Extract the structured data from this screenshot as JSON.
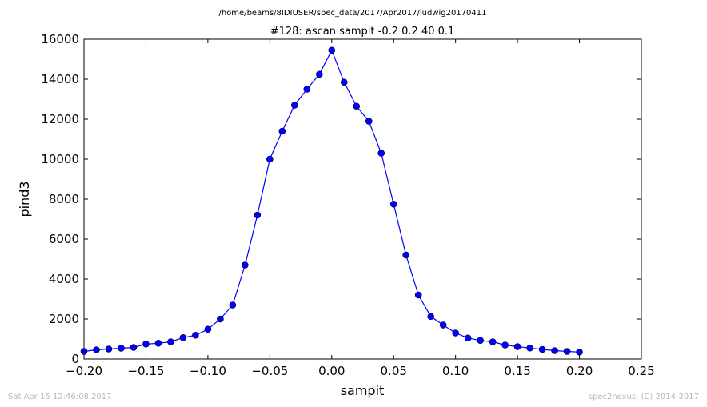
{
  "suptitle": "/home/beams/8IDIUSER/spec_data/2017/Apr2017/ludwig20170411",
  "footer": {
    "timestamp": "Sat Apr 15 12:46:08 2017",
    "credit": "spec2nexus, (C) 2014-2017"
  },
  "colors": {
    "series": "#0000ff",
    "footer_text": "#b8b8b8"
  },
  "chart_data": {
    "type": "line",
    "title": "#128: ascan  sampit -0.2 0.2  40 0.1",
    "xlabel": "sampit",
    "ylabel": "pind3",
    "xlim": [
      -0.2,
      0.25
    ],
    "ylim": [
      0,
      16000
    ],
    "x_ticks": [
      -0.2,
      -0.15,
      -0.1,
      -0.05,
      0.0,
      0.05,
      0.1,
      0.15,
      0.2,
      0.25
    ],
    "x_tick_labels": [
      "−0.20",
      "−0.15",
      "−0.10",
      "−0.05",
      "0.00",
      "0.05",
      "0.10",
      "0.15",
      "0.20",
      "0.25"
    ],
    "y_ticks": [
      0,
      2000,
      4000,
      6000,
      8000,
      10000,
      12000,
      14000,
      16000
    ],
    "y_tick_labels": [
      "0",
      "2000",
      "4000",
      "6000",
      "8000",
      "10000",
      "12000",
      "14000",
      "16000"
    ],
    "grid": false,
    "marker": "circle",
    "series": [
      {
        "x": [
          -0.2,
          -0.19,
          -0.18,
          -0.17,
          -0.16,
          -0.15,
          -0.14,
          -0.13,
          -0.12,
          -0.11,
          -0.1,
          -0.09,
          -0.08,
          -0.07,
          -0.06,
          -0.05,
          -0.04,
          -0.03,
          -0.02,
          -0.01,
          0.0,
          0.01,
          0.02,
          0.03,
          0.04,
          0.05,
          0.06,
          0.07,
          0.08,
          0.09,
          0.1,
          0.11,
          0.12,
          0.13,
          0.14,
          0.15,
          0.16,
          0.17,
          0.18,
          0.19,
          0.2
        ],
        "y": [
          380,
          460,
          500,
          540,
          580,
          750,
          790,
          860,
          1070,
          1190,
          1490,
          2000,
          2700,
          4700,
          7200,
          10000,
          11400,
          12700,
          13500,
          14250,
          15450,
          13850,
          12650,
          11900,
          10300,
          7750,
          5200,
          3200,
          2130,
          1700,
          1300,
          1050,
          930,
          860,
          700,
          620,
          550,
          480,
          420,
          380,
          350
        ]
      }
    ]
  }
}
